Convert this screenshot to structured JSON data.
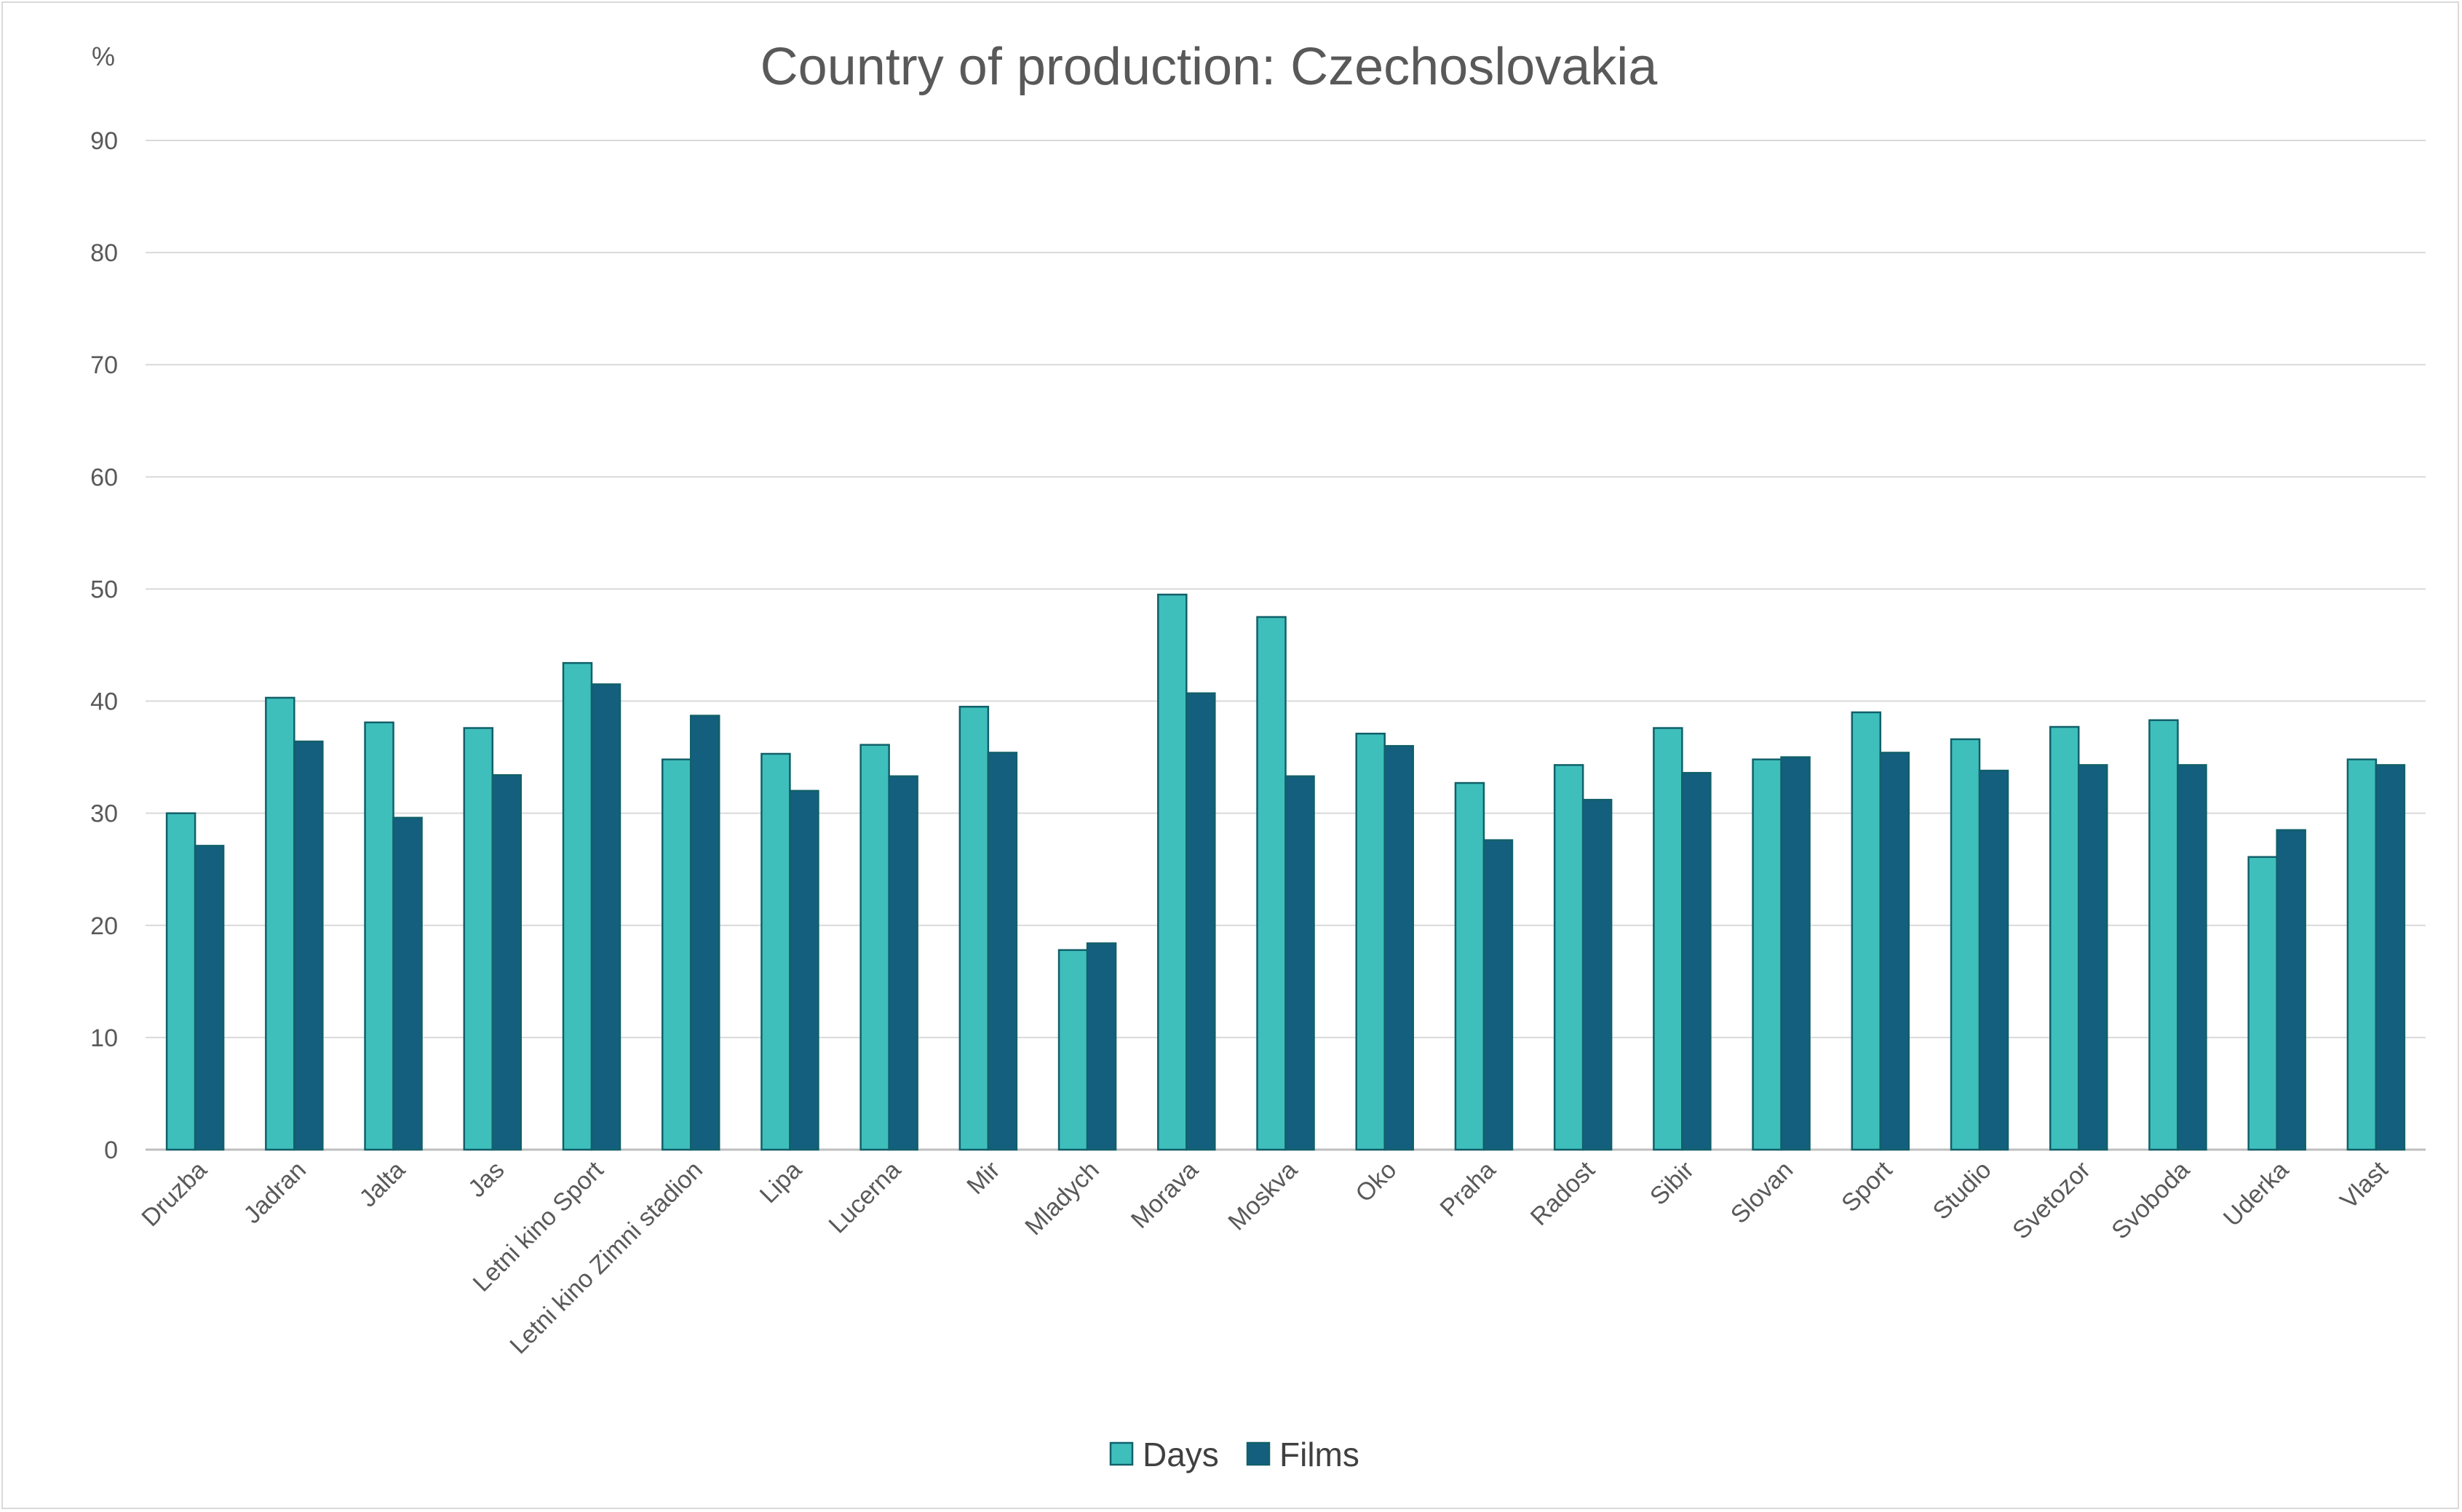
{
  "chart_data": {
    "type": "bar",
    "title": "Country of production: Czechoslovakia",
    "ylabel": "%",
    "xlabel": "",
    "ylim": [
      0,
      90
    ],
    "yticks": [
      "0",
      "10",
      "20",
      "30",
      "40",
      "50",
      "60",
      "70",
      "80",
      "90"
    ],
    "grid": true,
    "legend_position": "bottom",
    "categories": [
      "Druzba",
      "Jadran",
      "Jalta",
      "Jas",
      "Letni kino Sport",
      "Letni kino Zimni stadion",
      "Lipa",
      "Lucerna",
      "Mir",
      "Mladych",
      "Morava",
      "Moskva",
      "Oko",
      "Praha",
      "Radost",
      "Sibir",
      "Slovan",
      "Sport",
      "Studio",
      "Svetozor",
      "Svoboda",
      "Uderka",
      "Vlast"
    ],
    "series": [
      {
        "name": "Days",
        "color": "#3fbfbc",
        "values": [
          30.0,
          40.3,
          38.1,
          37.6,
          43.4,
          34.8,
          35.3,
          36.1,
          39.5,
          17.8,
          49.5,
          47.5,
          37.1,
          32.7,
          34.3,
          37.6,
          34.8,
          39.0,
          36.6,
          37.7,
          38.3,
          26.1,
          34.8
        ]
      },
      {
        "name": "Films",
        "color": "#145f7e",
        "values": [
          27.1,
          36.4,
          29.6,
          33.4,
          41.5,
          38.7,
          32.0,
          33.3,
          35.4,
          18.4,
          40.7,
          33.3,
          36.0,
          27.6,
          31.2,
          33.6,
          35.0,
          35.4,
          33.8,
          34.3,
          34.3,
          28.5,
          34.3
        ]
      }
    ]
  }
}
